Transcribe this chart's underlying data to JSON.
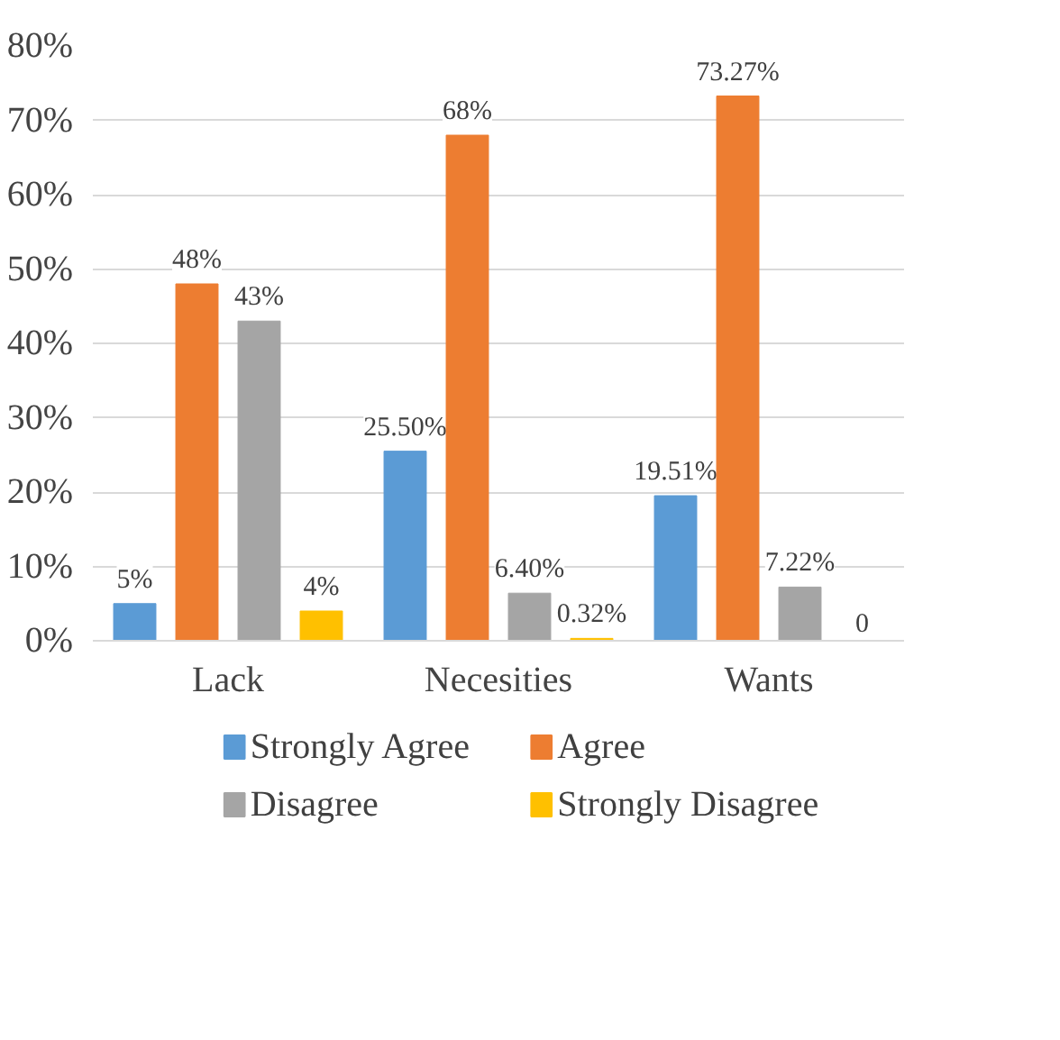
{
  "chart_data": {
    "type": "bar",
    "categories": [
      "Lack",
      "Necesities",
      "Wants"
    ],
    "series": [
      {
        "name": "Strongly Agree",
        "color": "#5b9bd5",
        "values": [
          5,
          25.5,
          19.51
        ],
        "value_labels": [
          "5%",
          "25.50%",
          "19.51%"
        ]
      },
      {
        "name": "Agree",
        "color": "#ed7d31",
        "values": [
          48,
          68,
          73.27
        ],
        "value_labels": [
          "48%",
          "68%",
          "73.27%"
        ]
      },
      {
        "name": "Disagree",
        "color": "#a5a5a5",
        "values": [
          43,
          6.4,
          7.22
        ],
        "value_labels": [
          "43%",
          "6.40%",
          "7.22%"
        ]
      },
      {
        "name": "Strongly Disagree",
        "color": "#ffc000",
        "values": [
          4,
          0.32,
          0
        ],
        "value_labels": [
          "4%",
          "0.32%",
          "0"
        ]
      }
    ],
    "ylim": [
      0,
      80
    ],
    "yticks": [
      {
        "value": 0,
        "label": "0%"
      },
      {
        "value": 10,
        "label": "10%"
      },
      {
        "value": 20,
        "label": "20%"
      },
      {
        "value": 30,
        "label": "30%"
      },
      {
        "value": 40,
        "label": "40%"
      },
      {
        "value": 50,
        "label": "50%"
      },
      {
        "value": 60,
        "label": "60%"
      },
      {
        "value": 70,
        "label": "70%"
      },
      {
        "value": 80,
        "label": "80%"
      }
    ],
    "grid": "y",
    "legend": "bottom"
  }
}
